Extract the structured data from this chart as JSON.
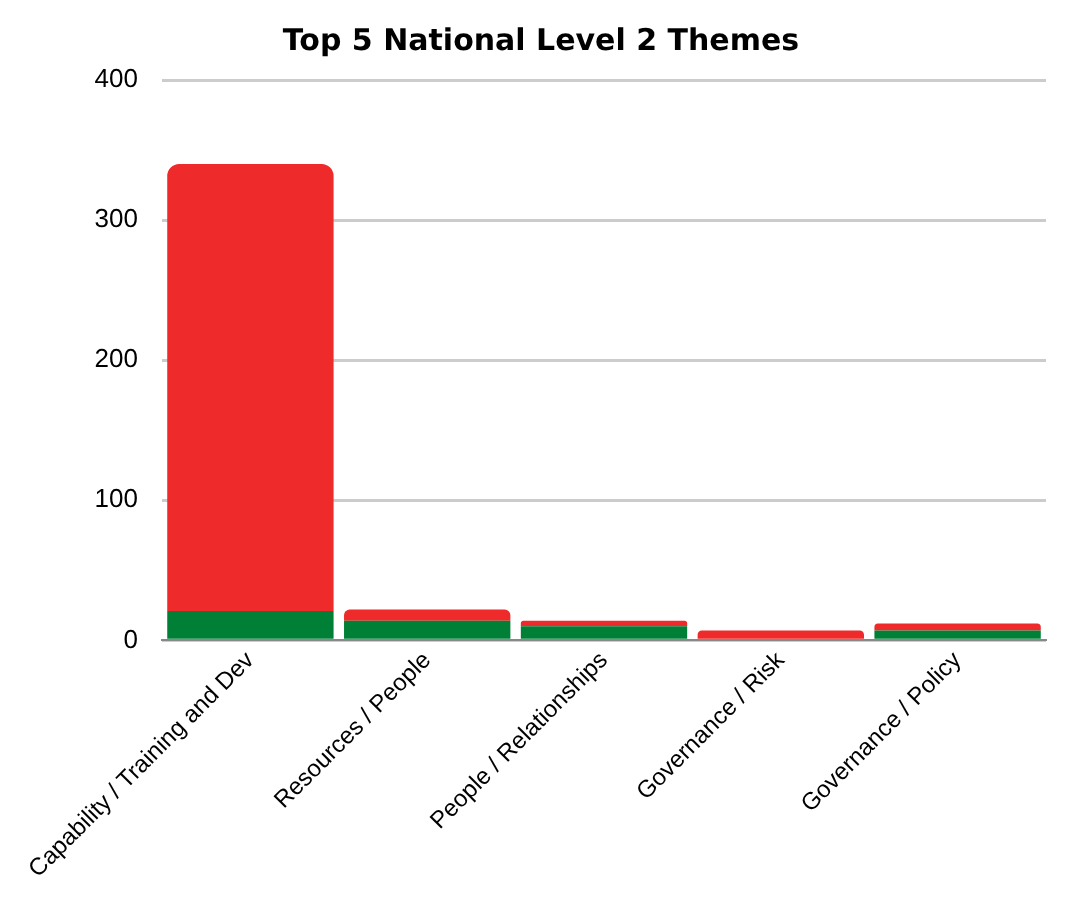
{
  "chart_data": {
    "type": "bar",
    "title": "Top 5 National Level 2 Themes",
    "categories": [
      "Capability / Training and Dev",
      "Resources / People",
      "People / Relationships",
      "Governance / Risk",
      "Governance / Policy"
    ],
    "stacked": true,
    "series": [
      {
        "color": "#008037",
        "values": [
          21,
          14,
          10,
          0,
          7
        ]
      },
      {
        "color": "#ee2a2a",
        "values": [
          319,
          8,
          4,
          7,
          5
        ]
      }
    ],
    "ylim": [
      0,
      400
    ],
    "yticks": [
      0,
      100,
      200,
      300,
      400
    ],
    "grid": "y",
    "legend": false
  }
}
